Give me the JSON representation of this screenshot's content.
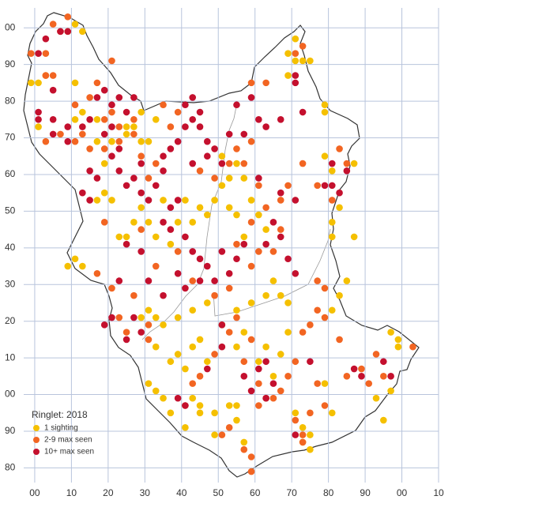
{
  "chart_data": {
    "type": "scatter",
    "grid": true,
    "xlim": [
      -3,
      110
    ],
    "ylim": [
      -24,
      105
    ],
    "xticks": [
      {
        "value": 0,
        "label": "00"
      },
      10,
      20,
      30,
      40,
      50,
      60,
      70,
      80,
      90,
      {
        "value": 100,
        "label": "00"
      },
      {
        "value": 110,
        "label": "10"
      }
    ],
    "yticks": [
      {
        "value": -20,
        "label": "80"
      },
      {
        "value": -10,
        "label": "90"
      },
      {
        "value": 0,
        "label": "00"
      },
      10,
      20,
      30,
      40,
      50,
      60,
      70,
      80,
      90,
      {
        "value": 100,
        "label": "00"
      }
    ],
    "legend_title": "Ringlet:  2018",
    "series": [
      {
        "name": "1 sighting",
        "color": "#f5c000",
        "x": [
          -1,
          1,
          3,
          1,
          11,
          11,
          13,
          17,
          17,
          19,
          21,
          25,
          25,
          27,
          29,
          29,
          31,
          33,
          19,
          21,
          17,
          11,
          13,
          9,
          23,
          25,
          27,
          29,
          31,
          33,
          35,
          37,
          39,
          41,
          43,
          45,
          47,
          49,
          51,
          53,
          55,
          57,
          53,
          51,
          55,
          57,
          59,
          61,
          63,
          65,
          67,
          69,
          63,
          59,
          55,
          47,
          43,
          39,
          35,
          33,
          31,
          29,
          33,
          37,
          39,
          43,
          45,
          47,
          41,
          43,
          45,
          49,
          53,
          55,
          49,
          45,
          41,
          37,
          33,
          31,
          35,
          51,
          55,
          57,
          61,
          63,
          65,
          67,
          69,
          71,
          73,
          75,
          75,
          73,
          57,
          55,
          81,
          79,
          81,
          83,
          85,
          81,
          81,
          83,
          81,
          79,
          79,
          79,
          87,
          87,
          93,
          95,
          97,
          97,
          99,
          99,
          71,
          73,
          69,
          69,
          71,
          75,
          11,
          13,
          9
        ],
        "y": [
          85,
          85,
          87,
          73,
          85,
          75,
          77,
          75,
          69,
          63,
          69,
          73,
          71,
          73,
          77,
          69,
          69,
          75,
          55,
          53,
          53,
          37,
          35,
          35,
          43,
          43,
          47,
          51,
          47,
          43,
          53,
          41,
          47,
          53,
          47,
          51,
          49,
          53,
          57,
          51,
          49,
          43,
          59,
          65,
          63,
          59,
          53,
          49,
          45,
          31,
          27,
          25,
          27,
          25,
          23,
          25,
          23,
          21,
          19,
          21,
          23,
          21,
          13,
          9,
          11,
          13,
          15,
          9,
          7,
          -1,
          -3,
          -5,
          -3,
          -7,
          -11,
          -5,
          -9,
          -5,
          1,
          3,
          -1,
          19,
          13,
          17,
          9,
          13,
          5,
          11,
          17,
          -5,
          -9,
          -11,
          -15,
          -13,
          -13,
          -3,
          -5,
          3,
          23,
          27,
          31,
          43,
          47,
          51,
          61,
          65,
          79,
          77,
          63,
          43,
          -1,
          -7,
          1,
          17,
          15,
          13,
          91,
          91,
          93,
          87,
          97,
          91,
          101,
          99,
          99
        ]
      },
      {
        "name": "2-9 max seen",
        "color": "#f26522",
        "x": [
          -1,
          3,
          5,
          3,
          7,
          5,
          9,
          21,
          17,
          15,
          21,
          27,
          11,
          13,
          15,
          19,
          23,
          7,
          3,
          11,
          19,
          23,
          27,
          29,
          31,
          33,
          37,
          39,
          35,
          45,
          49,
          53,
          57,
          59,
          55,
          59,
          61,
          63,
          67,
          69,
          73,
          77,
          81,
          67,
          59,
          55,
          61,
          65,
          59,
          53,
          49,
          43,
          39,
          33,
          29,
          19,
          17,
          21,
          27,
          23,
          25,
          31,
          31,
          41,
          43,
          45,
          49,
          53,
          55,
          57,
          59,
          61,
          61,
          63,
          65,
          67,
          69,
          71,
          73,
          75,
          77,
          79,
          77,
          79,
          77,
          83,
          85,
          89,
          91,
          93,
          95,
          103,
          51,
          53,
          57,
          59,
          59,
          73,
          71,
          79,
          75,
          73,
          63,
          71,
          73,
          85,
          83
        ],
        "y": [
          93,
          93,
          87,
          87,
          99,
          101,
          103,
          91,
          85,
          81,
          77,
          75,
          79,
          71,
          67,
          75,
          73,
          71,
          69,
          69,
          67,
          69,
          71,
          65,
          59,
          63,
          73,
          77,
          79,
          61,
          59,
          63,
          63,
          69,
          67,
          85,
          57,
          51,
          53,
          57,
          63,
          57,
          53,
          45,
          47,
          41,
          39,
          39,
          35,
          29,
          27,
          31,
          39,
          35,
          45,
          47,
          33,
          29,
          27,
          21,
          17,
          19,
          15,
          -3,
          3,
          5,
          11,
          17,
          21,
          9,
          15,
          -3,
          3,
          -1,
          -1,
          1,
          5,
          9,
          17,
          19,
          23,
          21,
          31,
          29,
          3,
          15,
          5,
          7,
          3,
          11,
          5,
          13,
          -11,
          -9,
          -15,
          -17,
          -21,
          -13,
          -7,
          -3,
          -5,
          -11,
          85,
          93,
          95,
          63,
          67
        ]
      },
      {
        "name": "10+ max seen",
        "color": "#c4102e",
        "x": [
          1,
          1,
          5,
          5,
          9,
          9,
          13,
          15,
          17,
          19,
          21,
          23,
          25,
          27,
          19,
          21,
          23,
          15,
          13,
          15,
          17,
          21,
          23,
          25,
          27,
          29,
          29,
          31,
          33,
          35,
          35,
          37,
          39,
          41,
          43,
          45,
          41,
          43,
          45,
          47,
          43,
          47,
          49,
          51,
          53,
          55,
          57,
          59,
          61,
          63,
          67,
          71,
          71,
          73,
          7,
          9,
          3,
          1,
          5,
          37,
          39,
          35,
          37,
          41,
          43,
          45,
          47,
          51,
          53,
          55,
          57,
          49,
          45,
          41,
          39,
          35,
          31,
          29,
          25,
          23,
          27,
          25,
          21,
          29,
          19,
          39,
          47,
          51,
          51,
          57,
          59,
          63,
          61,
          63,
          67,
          69,
          71,
          71,
          75,
          81,
          83,
          85,
          87,
          89,
          95,
          97,
          71,
          41,
          65,
          63,
          65,
          81,
          79,
          61,
          67
        ],
        "y": [
          77,
          75,
          75,
          71,
          73,
          69,
          73,
          75,
          81,
          83,
          79,
          81,
          77,
          81,
          71,
          73,
          67,
          61,
          55,
          53,
          59,
          65,
          61,
          57,
          59,
          63,
          55,
          53,
          57,
          61,
          65,
          67,
          69,
          73,
          75,
          77,
          79,
          81,
          73,
          69,
          63,
          65,
          67,
          63,
          71,
          79,
          71,
          81,
          75,
          73,
          75,
          87,
          85,
          77,
          99,
          99,
          97,
          93,
          83,
          51,
          53,
          47,
          45,
          43,
          39,
          37,
          35,
          39,
          33,
          37,
          41,
          31,
          31,
          29,
          33,
          27,
          31,
          39,
          41,
          31,
          21,
          15,
          21,
          17,
          19,
          -1,
          7,
          13,
          19,
          5,
          1,
          -1,
          7,
          9,
          43,
          37,
          33,
          53,
          9,
          63,
          55,
          61,
          7,
          5,
          9,
          5,
          -11,
          -3,
          3,
          41,
          47,
          57,
          57,
          59,
          55
        ]
      }
    ]
  }
}
